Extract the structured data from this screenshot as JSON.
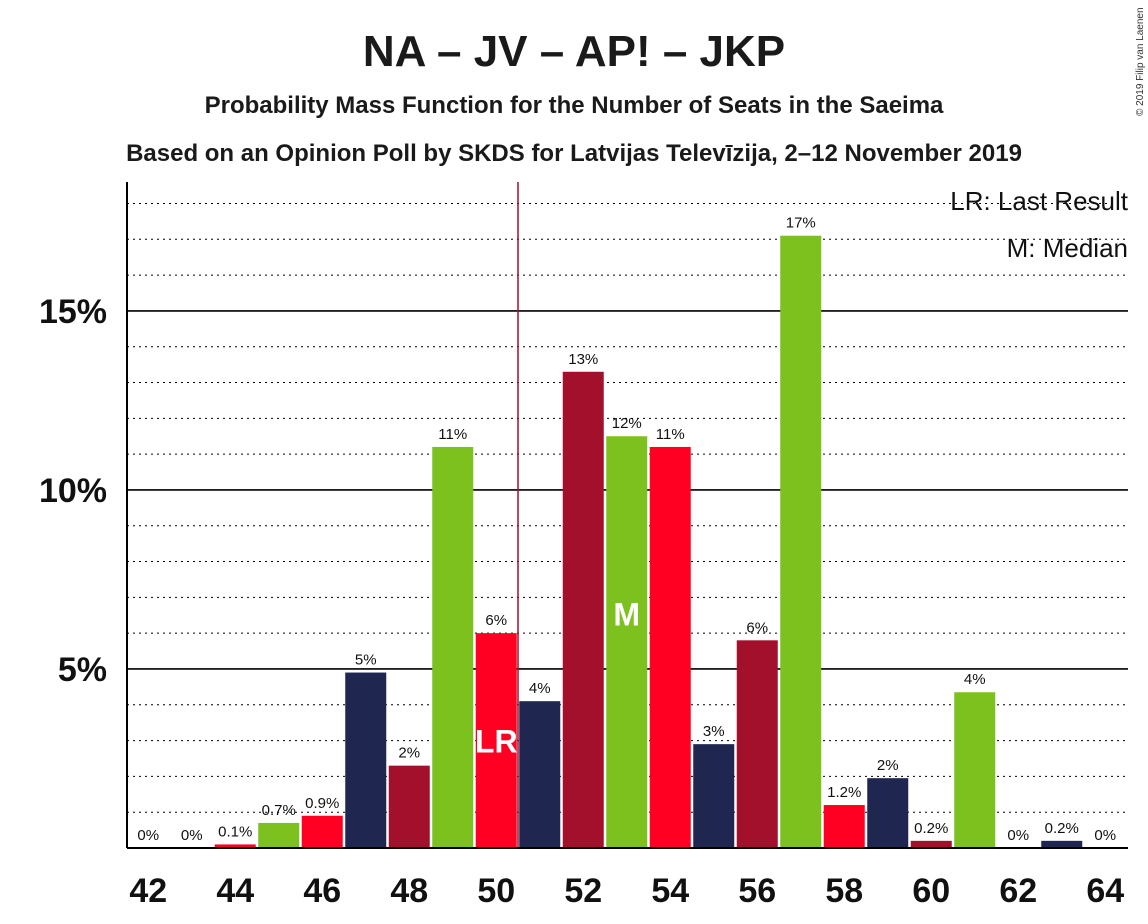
{
  "chart_data": {
    "type": "bar",
    "title": "NA – JV – AP! – JKP",
    "subtitle_1": "Probability Mass Function for the Number of Seats in the Saeima",
    "subtitle_2": "Based on an Opinion Poll by SKDS for Latvijas Televīzija, 2–12 November 2019",
    "copyright": "© 2019 Filip van Laenen",
    "legend": {
      "last_result": "LR: Last Result",
      "median": "M: Median",
      "placement": "top-right"
    },
    "x": [
      42,
      43,
      44,
      45,
      46,
      47,
      48,
      49,
      50,
      51,
      52,
      53,
      54,
      55,
      56,
      57,
      58,
      59,
      60,
      61,
      62,
      63,
      64
    ],
    "values": [
      0,
      0,
      0.1,
      0.7,
      0.9,
      4.9,
      2.3,
      11.2,
      6.0,
      4.1,
      13.3,
      11.5,
      11.2,
      2.9,
      5.8,
      17.1,
      1.2,
      1.95,
      0.2,
      4.35,
      0,
      0.2,
      0
    ],
    "labels": [
      "0%",
      "0%",
      "0.1%",
      "0.7%",
      "0.9%",
      "5%",
      "2%",
      "11%",
      "6%",
      "4%",
      "13%",
      "12%",
      "11%",
      "3%",
      "6%",
      "17%",
      "1.2%",
      "2%",
      "0.2%",
      "4%",
      "0%",
      "0.2%",
      "0%"
    ],
    "bar_colors": [
      "#7dc11e",
      "#ff0023",
      "#ff0023",
      "#7dc11e",
      "#ff0023",
      "#1f2650",
      "#a3102c",
      "#7dc11e",
      "#ff0023",
      "#1f2650",
      "#a3102c",
      "#7dc11e",
      "#ff0023",
      "#1f2650",
      "#a3102c",
      "#7dc11e",
      "#ff0023",
      "#1f2650",
      "#a3102c",
      "#7dc11e",
      "#ff0023",
      "#1f2650",
      "#a3102c"
    ],
    "xticks": [
      42,
      44,
      46,
      48,
      50,
      52,
      54,
      56,
      58,
      60,
      62,
      64
    ],
    "xtick_labels": [
      "42",
      "44",
      "46",
      "48",
      "50",
      "52",
      "54",
      "56",
      "58",
      "60",
      "62",
      "64"
    ],
    "yticks": [
      5,
      10,
      15
    ],
    "ytick_labels": [
      "5%",
      "10%",
      "15%"
    ],
    "ylim": [
      0,
      18.6
    ],
    "minor_grid_step": 1,
    "last_result": {
      "seat": 50,
      "label": "LR"
    },
    "median": {
      "seat": 53,
      "label": "M"
    },
    "majority_line_x": 50.5,
    "colors": {
      "majority_line": "#a3102c",
      "grid": "#000000"
    }
  }
}
